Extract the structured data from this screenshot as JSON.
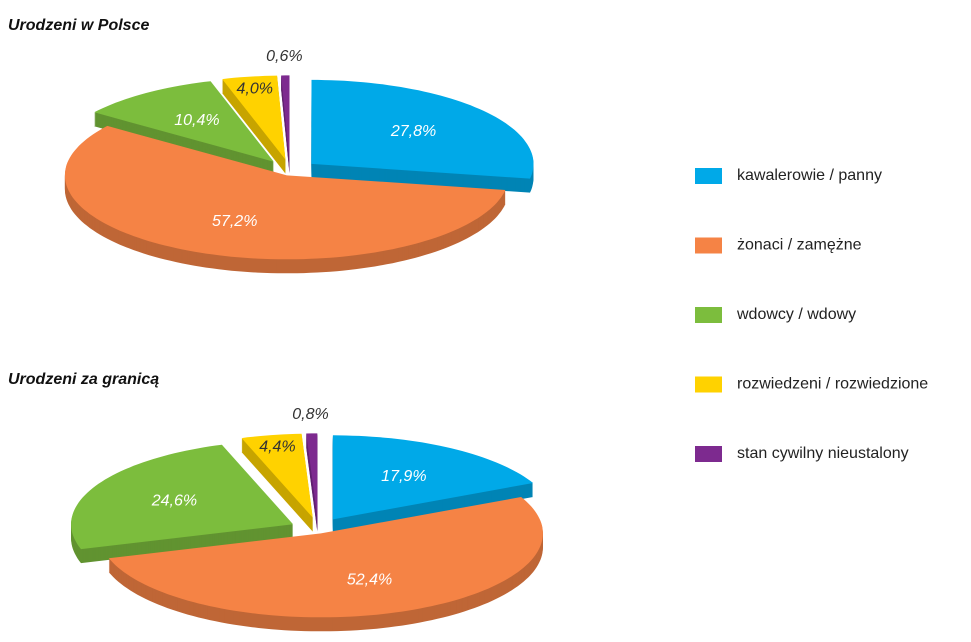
{
  "legend": {
    "labels": [
      "kawalerowie / panny",
      "żonaci / zamężne",
      "wdowcy / wdowy",
      "rozwiedzeni / rozwiedzione",
      "stan cywilny nieustalony"
    ],
    "colors": [
      "#00a9e8",
      "#f58345",
      "#7cbd3d",
      "#ffd200",
      "#7d2a8f"
    ]
  },
  "chart_data": [
    {
      "type": "pie",
      "title": "Urodzeni w Polsce",
      "values": [
        27.8,
        57.2,
        10.4,
        4.0,
        0.6
      ],
      "value_labels": [
        "27,8%",
        "57,2%",
        "10,4%",
        "4,0%",
        "0,6%"
      ]
    },
    {
      "type": "pie",
      "title": "Urodzeni za granicą",
      "values": [
        17.9,
        52.4,
        24.6,
        4.4,
        0.8
      ],
      "value_labels": [
        "17,9%",
        "52,4%",
        "24,6%",
        "4,4%",
        "0,8%"
      ]
    }
  ]
}
